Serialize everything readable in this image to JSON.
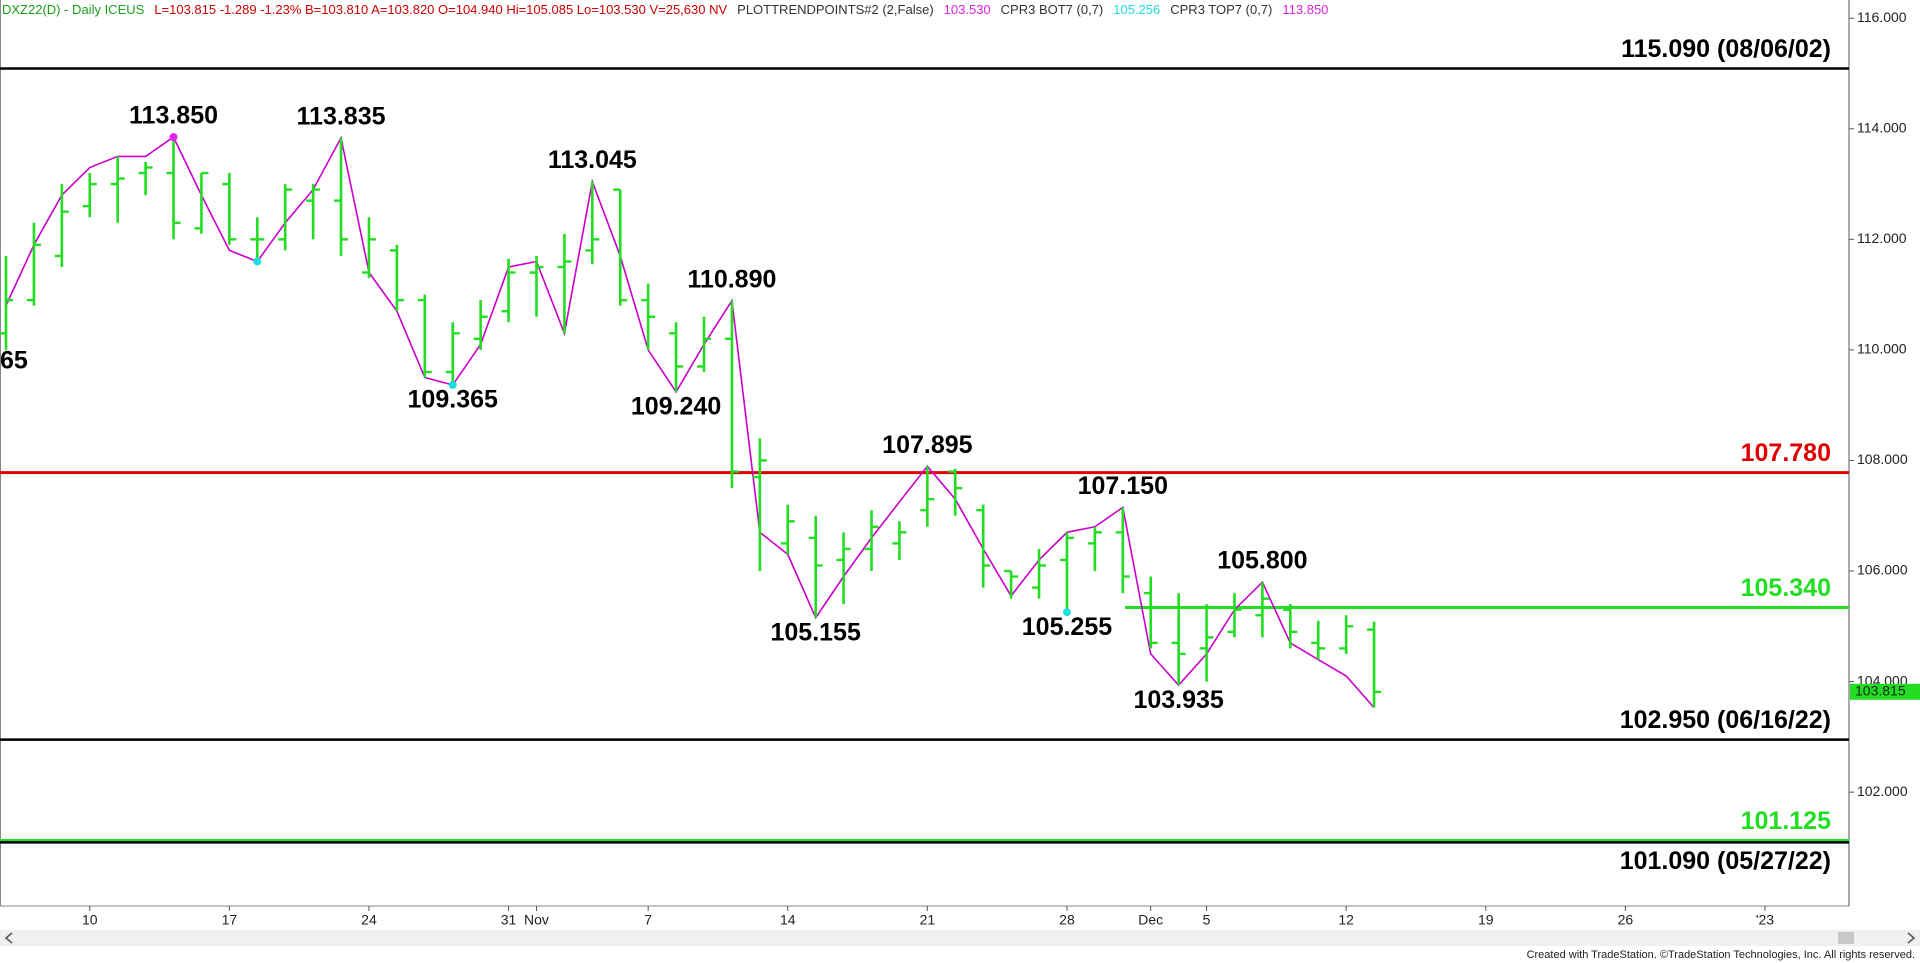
{
  "chart_data": {
    "type": "ohlc",
    "header": [
      {
        "text": "DXZ22(D) - Daily  ICEUS",
        "color": "#1aa01a"
      },
      {
        "text": "L=103.815  -1.289  -1.23%  B=103.810  A=103.820  O=104.940  Hi=105.085  Lo=103.530  V=25,630  NV",
        "color": "#cc0000"
      },
      {
        "text": "PLOTTRENDPOINTS#2 (2,False)",
        "color": "#333333"
      },
      {
        "text": "103.530",
        "color": "#dd22dd"
      },
      {
        "text": "CPR3 BOT7 (0,7)",
        "color": "#333333"
      },
      {
        "text": "105.256",
        "color": "#22dddd"
      },
      {
        "text": "CPR3 TOP7 (0,7)",
        "color": "#333333"
      },
      {
        "text": "113.850",
        "color": "#dd22dd"
      }
    ],
    "categories": [
      null,
      null,
      null,
      "10",
      null,
      null,
      null,
      null,
      "17",
      null,
      null,
      null,
      null,
      "24",
      null,
      null,
      null,
      null,
      "31",
      "Nov",
      null,
      null,
      null,
      "7",
      null,
      null,
      null,
      null,
      "14",
      null,
      null,
      null,
      null,
      "21",
      null,
      null,
      null,
      null,
      "28",
      null,
      null,
      "Dec",
      null,
      "5",
      null,
      null,
      null,
      null,
      "12",
      null,
      null,
      null,
      null,
      "19",
      null,
      null,
      null,
      null,
      "26",
      null,
      null,
      null,
      null,
      "'23",
      null,
      null
    ],
    "open": [
      110.3,
      110.9,
      111.7,
      112.6,
      113.0,
      113.2,
      113.2,
      112.2,
      113.0,
      112.0,
      112.0,
      112.7,
      112.7,
      111.4,
      111.8,
      110.9,
      109.6,
      110.2,
      110.7,
      111.4,
      111.5,
      111.8,
      112.9,
      110.9,
      110.3,
      109.7,
      110.2,
      107.7,
      106.5,
      106.6,
      106.2,
      106.4,
      106.5,
      107.1,
      107.8,
      107.1,
      106.0,
      105.7,
      106.2,
      106.5,
      106.7,
      105.6,
      104.7,
      104.6,
      104.9,
      105.2,
      105.3,
      104.7,
      104.6,
      104.94,
      null,
      null,
      null,
      null,
      null,
      null,
      null,
      null,
      null,
      null,
      null,
      null,
      null,
      null,
      null,
      null
    ],
    "high": [
      111.7,
      112.3,
      113.0,
      113.2,
      113.5,
      113.4,
      113.85,
      113.2,
      113.2,
      112.4,
      113.0,
      113.0,
      113.835,
      112.4,
      111.9,
      111.0,
      110.5,
      110.9,
      111.65,
      111.7,
      112.1,
      113.045,
      112.9,
      111.2,
      110.5,
      110.6,
      110.89,
      108.4,
      107.2,
      107.0,
      106.7,
      107.1,
      106.9,
      107.895,
      107.85,
      107.2,
      106.0,
      106.4,
      106.7,
      106.8,
      107.15,
      105.9,
      105.6,
      105.4,
      105.6,
      105.8,
      105.4,
      105.1,
      105.2,
      105.085,
      null,
      null,
      null,
      null,
      null,
      null,
      null,
      null,
      null,
      null,
      null,
      null,
      null,
      null,
      null,
      null
    ],
    "low": [
      110.0,
      110.8,
      111.5,
      112.4,
      112.3,
      112.8,
      112.0,
      112.1,
      111.9,
      111.6,
      111.8,
      112.0,
      111.7,
      111.3,
      110.7,
      109.5,
      109.365,
      110.0,
      110.5,
      110.6,
      110.3,
      111.55,
      110.8,
      110.0,
      109.24,
      109.6,
      107.5,
      106.0,
      106.3,
      105.155,
      105.4,
      106.0,
      106.2,
      106.8,
      107.0,
      105.7,
      105.5,
      105.5,
      105.255,
      106.0,
      105.6,
      104.6,
      103.935,
      104.0,
      104.8,
      104.8,
      104.6,
      104.4,
      104.5,
      103.53,
      null,
      null,
      null,
      null,
      null,
      null,
      null,
      null,
      null,
      null,
      null,
      null,
      null,
      null,
      null,
      null
    ],
    "close": [
      110.9,
      111.9,
      112.5,
      113.0,
      113.1,
      113.3,
      112.3,
      113.2,
      112.0,
      112.0,
      112.9,
      112.9,
      112.0,
      112.0,
      110.9,
      109.6,
      110.3,
      110.6,
      111.4,
      111.5,
      111.6,
      112.0,
      110.9,
      110.6,
      109.7,
      110.2,
      107.8,
      108.0,
      106.9,
      106.1,
      106.4,
      106.8,
      106.7,
      107.3,
      107.5,
      106.1,
      105.9,
      106.1,
      106.6,
      106.7,
      105.9,
      104.7,
      104.5,
      104.8,
      105.3,
      105.5,
      104.9,
      104.6,
      105.0,
      103.815,
      null,
      null,
      null,
      null,
      null,
      null,
      null,
      null,
      null,
      null,
      null,
      null,
      null,
      null,
      null,
      null
    ],
    "trend": [
      110.8,
      111.9,
      112.8,
      113.3,
      113.5,
      113.5,
      113.85,
      112.8,
      111.8,
      111.6,
      112.3,
      112.9,
      113.835,
      111.4,
      110.7,
      109.5,
      109.365,
      110.1,
      111.5,
      111.6,
      110.3,
      113.045,
      111.7,
      110.0,
      109.24,
      110.1,
      110.89,
      106.7,
      106.3,
      105.155,
      105.9,
      106.6,
      107.25,
      107.895,
      107.3,
      106.4,
      105.55,
      106.2,
      106.7,
      106.8,
      107.15,
      104.5,
      103.935,
      104.5,
      105.3,
      105.8,
      104.7,
      104.4,
      104.1,
      103.53,
      null,
      null,
      null,
      null,
      null,
      null,
      null,
      null,
      null,
      null,
      null,
      null,
      null,
      null,
      null,
      null
    ],
    "bar_color": "#22dd22",
    "trend_color": "#cc00cc",
    "ylim": [
      99.94,
      116.33
    ],
    "yticks": [
      {
        "value": 116,
        "label": "116.000"
      },
      {
        "value": 114,
        "label": "114.000"
      },
      {
        "value": 112,
        "label": "112.000"
      },
      {
        "value": 110,
        "label": "110.000"
      },
      {
        "value": 108,
        "label": "108.000"
      },
      {
        "value": 106,
        "label": "106.000"
      },
      {
        "value": 104,
        "label": "104.000"
      },
      {
        "value": 102,
        "label": "102.000"
      }
    ],
    "levels": [
      {
        "text": "115.090 (08/06/02)",
        "value": 115.09,
        "color": "#000000"
      },
      {
        "text": "107.780",
        "value": 107.78,
        "color": "#dd0000"
      },
      {
        "text": "105.340",
        "value": 105.34,
        "color": "#22dd22"
      },
      {
        "text": "102.950 (06/16/22)",
        "value": 102.95,
        "color": "#000000"
      },
      {
        "text": "101.125",
        "value": 101.125,
        "color": "#22dd22"
      },
      {
        "text": "101.090 (05/27/22)",
        "value": 101.09,
        "color": "#000000"
      }
    ],
    "annotations": [
      {
        "text": "113.850",
        "value": 113.85
      },
      {
        "text": "113.835",
        "value": 113.835
      },
      {
        "text": "109.365",
        "value": 109.365
      },
      {
        "text": "113.045",
        "value": 113.045
      },
      {
        "text": "109.240",
        "value": 109.24
      },
      {
        "text": "110.890",
        "value": 110.89
      },
      {
        "text": "105.155",
        "value": 105.155
      },
      {
        "text": "107.895",
        "value": 107.895
      },
      {
        "text": "107.150",
        "value": 107.15
      },
      {
        "text": "105.255",
        "value": 105.255
      },
      {
        "text": "103.935",
        "value": 103.935
      },
      {
        "text": "105.800",
        "value": 105.8
      }
    ],
    "dots": [
      {
        "value": 113.85,
        "color": "#ee22ee"
      },
      {
        "value": 111.6,
        "color": "#22dddd"
      },
      {
        "value": 109.365,
        "color": "#22dddd"
      },
      {
        "value": 105.255,
        "color": "#22dddd"
      }
    ],
    "cut_label": "65",
    "last_price": 103.815,
    "footer": "Created with TradeStation. ©TradeStation Technologies, Inc. All rights reserved."
  }
}
